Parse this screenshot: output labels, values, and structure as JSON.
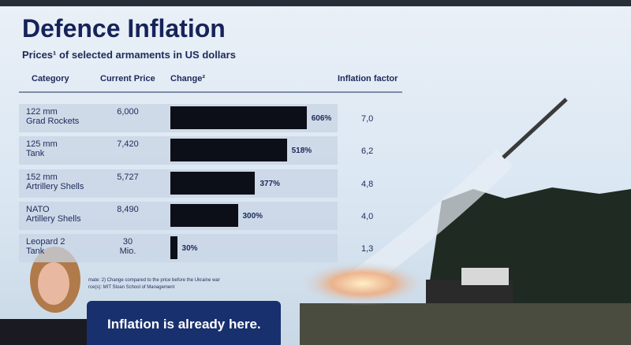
{
  "chart_data": {
    "type": "bar",
    "title": "Defence Inflation",
    "subtitle": "Prices¹ of selected armaments in US dollars",
    "headers": [
      "Category",
      "Current Price",
      "Change²",
      "Inflation factor"
    ],
    "categories": [
      "122 mm\nGrad Rockets",
      "125 mm\nTank",
      "152 mm\nArtrillery Shells",
      "NATO\nArtillery Shells",
      "Leopard 2\nTank"
    ],
    "current_price": [
      "6,000",
      "7,420",
      "5,727",
      "8,490",
      "30\nMio."
    ],
    "values": [
      606,
      518,
      377,
      300,
      30
    ],
    "value_labels": [
      "606%",
      "518%",
      "377%",
      "300%",
      "30%"
    ],
    "inflation_factor": [
      "7,0",
      "6,2",
      "4,8",
      "4,0",
      "1,3"
    ],
    "color": "#0d0f18",
    "footnotes": [
      "mate: 2) Change compared to the price before the Ukraine war",
      "rce(s): MIT Sloan School of Management"
    ],
    "banner": "Inflation is already here."
  }
}
